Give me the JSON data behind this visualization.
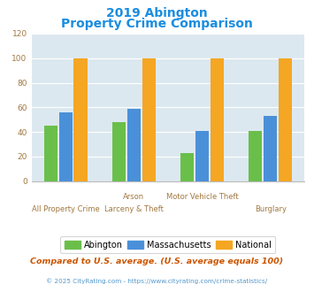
{
  "title_line1": "2019 Abington",
  "title_line2": "Property Crime Comparison",
  "cat_labels_top": [
    "",
    "Arson",
    "Motor Vehicle Theft",
    ""
  ],
  "cat_labels_bottom": [
    "All Property Crime",
    "Larceny & Theft",
    "",
    "Burglary"
  ],
  "abington": [
    45,
    48,
    23,
    41
  ],
  "massachusetts": [
    56,
    59,
    41,
    53
  ],
  "national": [
    100,
    100,
    100,
    100
  ],
  "bar_colors": {
    "abington": "#6abf4b",
    "massachusetts": "#4a90d9",
    "national": "#f5a623"
  },
  "ylim": [
    0,
    120
  ],
  "yticks": [
    0,
    20,
    40,
    60,
    80,
    100,
    120
  ],
  "legend_labels": [
    "Abington",
    "Massachusetts",
    "National"
  ],
  "footnote1": "Compared to U.S. average. (U.S. average equals 100)",
  "footnote2": "© 2025 CityRating.com - https://www.cityrating.com/crime-statistics/",
  "bg_color": "#dce8f0",
  "title_color": "#1a8de0",
  "footnote1_color": "#cc5500",
  "footnote2_color": "#5599cc",
  "tick_label_color": "#a07840",
  "grid_color": "#ffffff",
  "fig_bg": "#ffffff"
}
